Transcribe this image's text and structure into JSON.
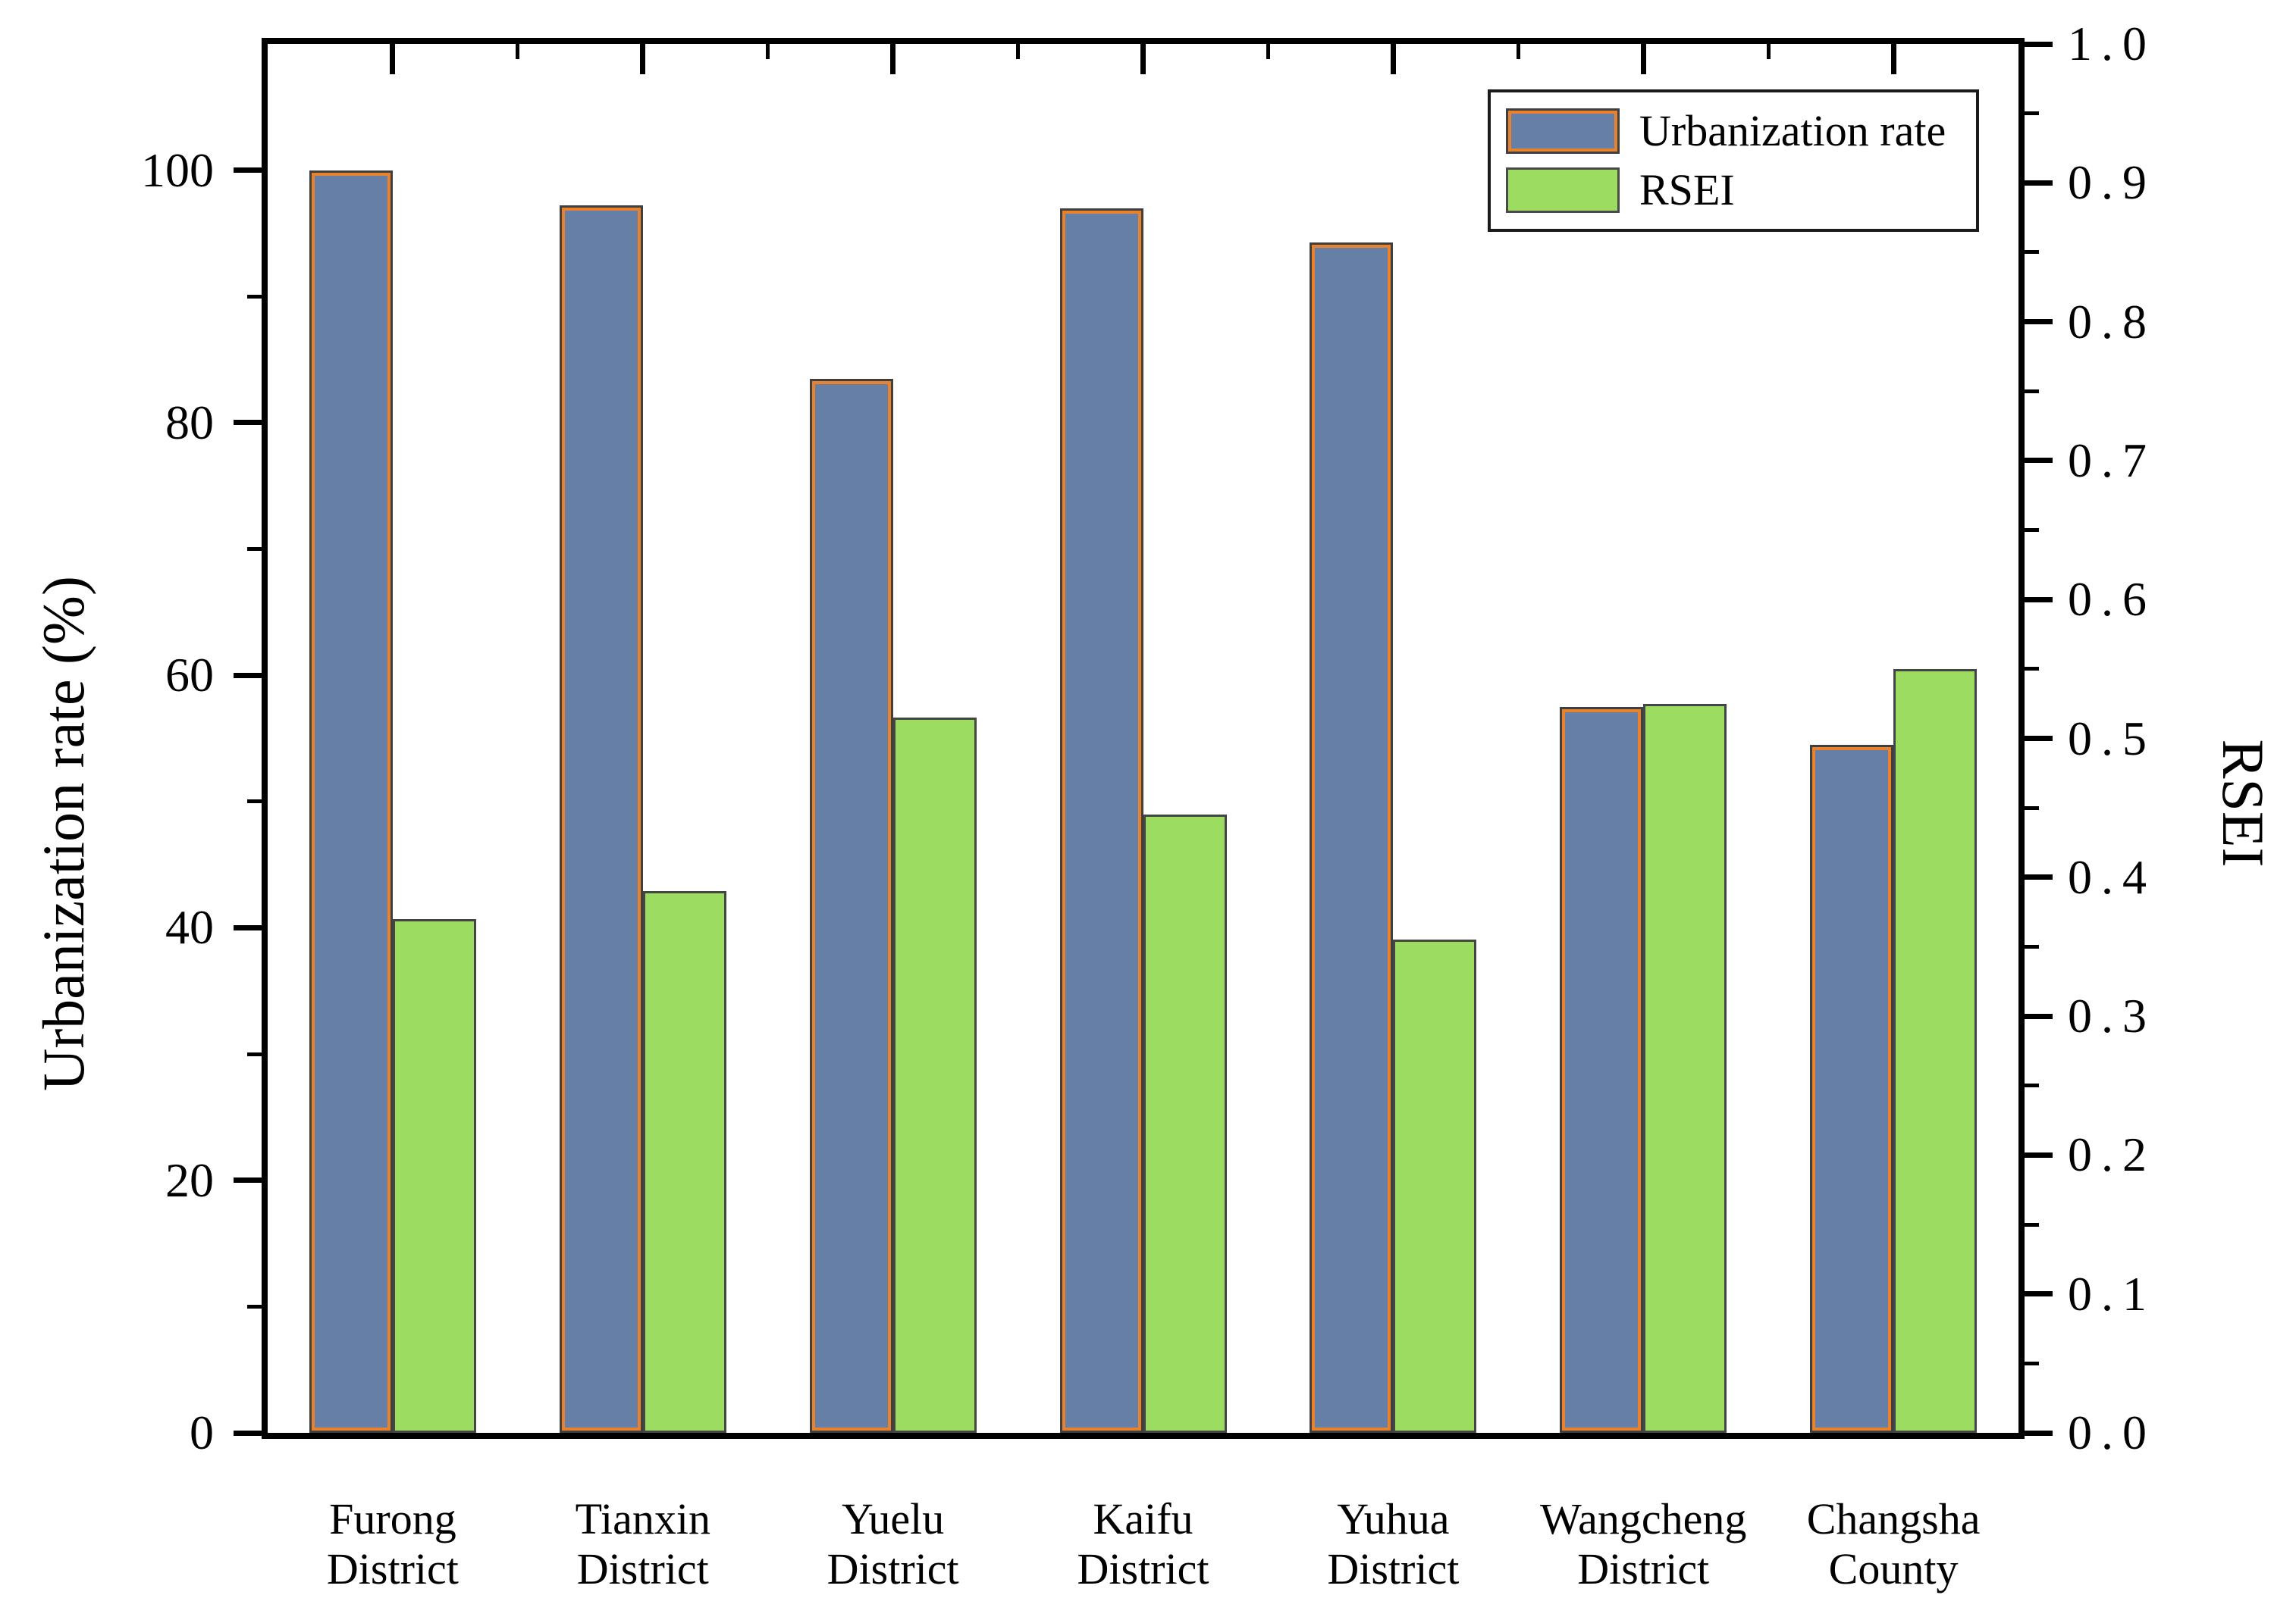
{
  "figure": {
    "background": "#ffffff",
    "accent_colors": {
      "urbanization_fill": "#657FA7",
      "urbanization_inner_edge": "#E8822D",
      "urbanization_outer_edge": "#3F3F3F",
      "rsei_fill": "#9BDC61",
      "rsei_edge": "#454545",
      "axis_color": "#000000"
    }
  },
  "chart_data": {
    "type": "bar",
    "dual_axis": true,
    "grid": false,
    "title": "",
    "categories": [
      "Furong District",
      "Tianxin District",
      "Yuelu District",
      "Kaifu District",
      "Yuhua District",
      "Wangcheng District",
      "Changsha County"
    ],
    "category_lines": [
      [
        "Furong",
        "District"
      ],
      [
        "Tianxin",
        "District"
      ],
      [
        "Yuelu",
        "District"
      ],
      [
        "Kaifu",
        "District"
      ],
      [
        "Yuhua",
        "District"
      ],
      [
        "Wangcheng",
        "District"
      ],
      [
        "Changsha",
        "County"
      ]
    ],
    "series": [
      {
        "name": "Urbanization rate",
        "axis": "left",
        "color": "#657FA7",
        "edge_color": "#E8822D",
        "values": [
          100.0,
          97.2,
          83.5,
          97.0,
          94.3,
          57.5,
          54.5
        ]
      },
      {
        "name": "RSEI",
        "axis": "right",
        "color": "#9BDC61",
        "edge_color": "#454545",
        "values": [
          0.37,
          0.39,
          0.515,
          0.445,
          0.355,
          0.525,
          0.55
        ]
      }
    ],
    "left_axis": {
      "label": "Urbanization rate (%)",
      "ticks": [
        "0",
        "20",
        "40",
        "60",
        "80",
        "100"
      ],
      "tick_values": [
        0,
        20,
        40,
        60,
        80,
        100
      ],
      "minor_tick_values": [
        10,
        30,
        50,
        70,
        90
      ],
      "ylim": [
        0,
        110
      ]
    },
    "right_axis": {
      "label": "RSEI",
      "ticks": [
        "0.0",
        "0.1",
        "0.2",
        "0.3",
        "0.4",
        "0.5",
        "0.6",
        "0.7",
        "0.8",
        "0.9",
        "1.0"
      ],
      "tick_values": [
        0.0,
        0.1,
        0.2,
        0.3,
        0.4,
        0.5,
        0.6,
        0.7,
        0.8,
        0.9,
        1.0
      ],
      "minor_tick_values": [
        0.05,
        0.15,
        0.25,
        0.35,
        0.45,
        0.55,
        0.65,
        0.75,
        0.85,
        0.95
      ],
      "ylim": [
        0,
        1.0
      ]
    },
    "legend": {
      "position": "top-right",
      "items": [
        {
          "label": "Urbanization rate",
          "color": "#657FA7"
        },
        {
          "label": "RSEI",
          "color": "#9BDC61"
        }
      ]
    }
  }
}
